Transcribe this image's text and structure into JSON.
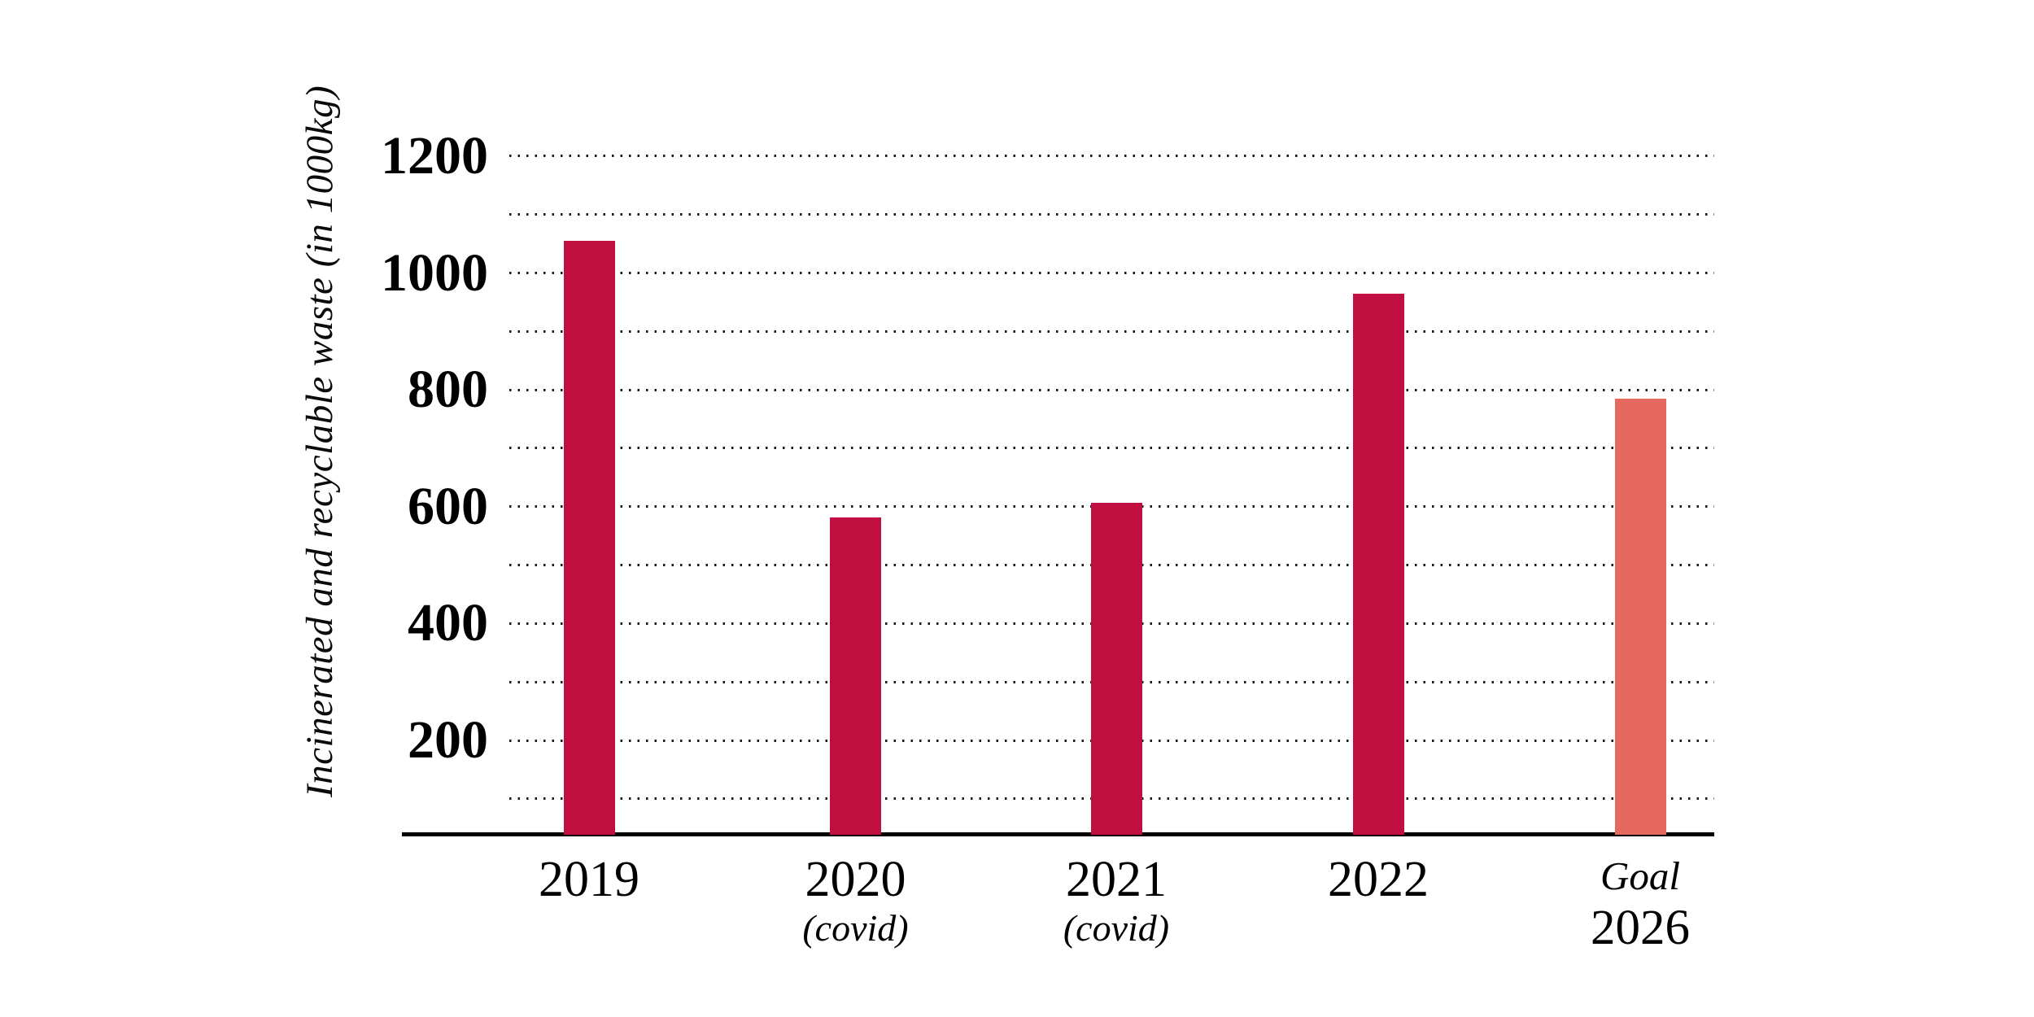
{
  "chart_data": {
    "type": "bar",
    "title": "",
    "ylabel": "Incinerated and recyclable waste (in 1000kg)",
    "xlabel": "",
    "categories": [
      {
        "label": "2019",
        "sublabel": "",
        "main_style": "plain",
        "sub_style": ""
      },
      {
        "label": "2020",
        "sublabel": "(covid)",
        "main_style": "plain",
        "sub_style": "covid"
      },
      {
        "label": "2021",
        "sublabel": "(covid)",
        "main_style": "plain",
        "sub_style": "covid"
      },
      {
        "label": "2022",
        "sublabel": "",
        "main_style": "plain",
        "sub_style": ""
      },
      {
        "label": "Goal",
        "sublabel": "2026",
        "main_style": "italic",
        "sub_style": "year"
      }
    ],
    "values": [
      1055,
      582,
      607,
      965,
      785
    ],
    "bar_colors": [
      "#c00e40",
      "#c00e40",
      "#c00e40",
      "#c00e40",
      "#e6695f"
    ],
    "yticks": [
      200,
      400,
      600,
      800,
      1000,
      1200
    ],
    "gridline_values": [
      100,
      200,
      300,
      400,
      500,
      600,
      700,
      800,
      900,
      1000,
      1100,
      1200
    ],
    "ylim": [
      40,
      1265
    ],
    "grid": "dotted-horizontal",
    "legend": "none",
    "colors": {
      "bar_primary": "#c00e40",
      "bar_goal": "#e6695f",
      "axis": "#000000",
      "grid_dot": "#1a1a1a",
      "background": "#ffffff",
      "text": "#000000"
    }
  }
}
